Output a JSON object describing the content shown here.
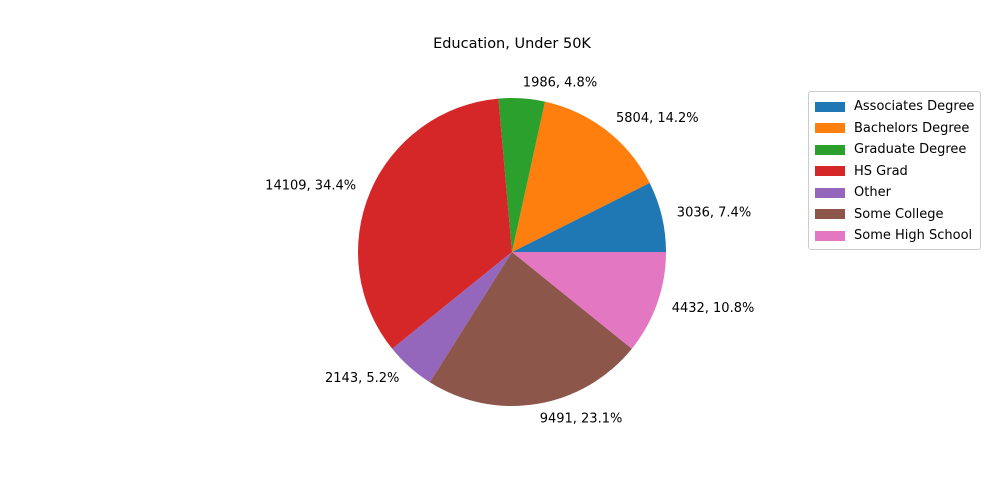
{
  "chart_data": {
    "type": "pie",
    "title": "Education, Under 50K",
    "slices": [
      {
        "label": "Associates Degree",
        "value": 3036,
        "percent_label": "3036, 7.4%",
        "color": "#1f77b4"
      },
      {
        "label": "Bachelors Degree",
        "value": 5804,
        "percent_label": "5804, 14.2%",
        "color": "#ff7f0e"
      },
      {
        "label": "Graduate Degree",
        "value": 1986,
        "percent_label": "1986, 4.8%",
        "color": "#2ca02c"
      },
      {
        "label": "HS Grad",
        "value": 14109,
        "percent_label": "14109, 34.4%",
        "color": "#d62728"
      },
      {
        "label": "Other",
        "value": 2143,
        "percent_label": "2143, 5.2%",
        "color": "#9467bd"
      },
      {
        "label": "Some College",
        "value": 9491,
        "percent_label": "9491, 23.1%",
        "color": "#8c564b"
      },
      {
        "label": "Some High School",
        "value": 4432,
        "percent_label": "4432, 10.8%",
        "color": "#e377c2"
      }
    ],
    "legend_position": "upper-right outside"
  }
}
